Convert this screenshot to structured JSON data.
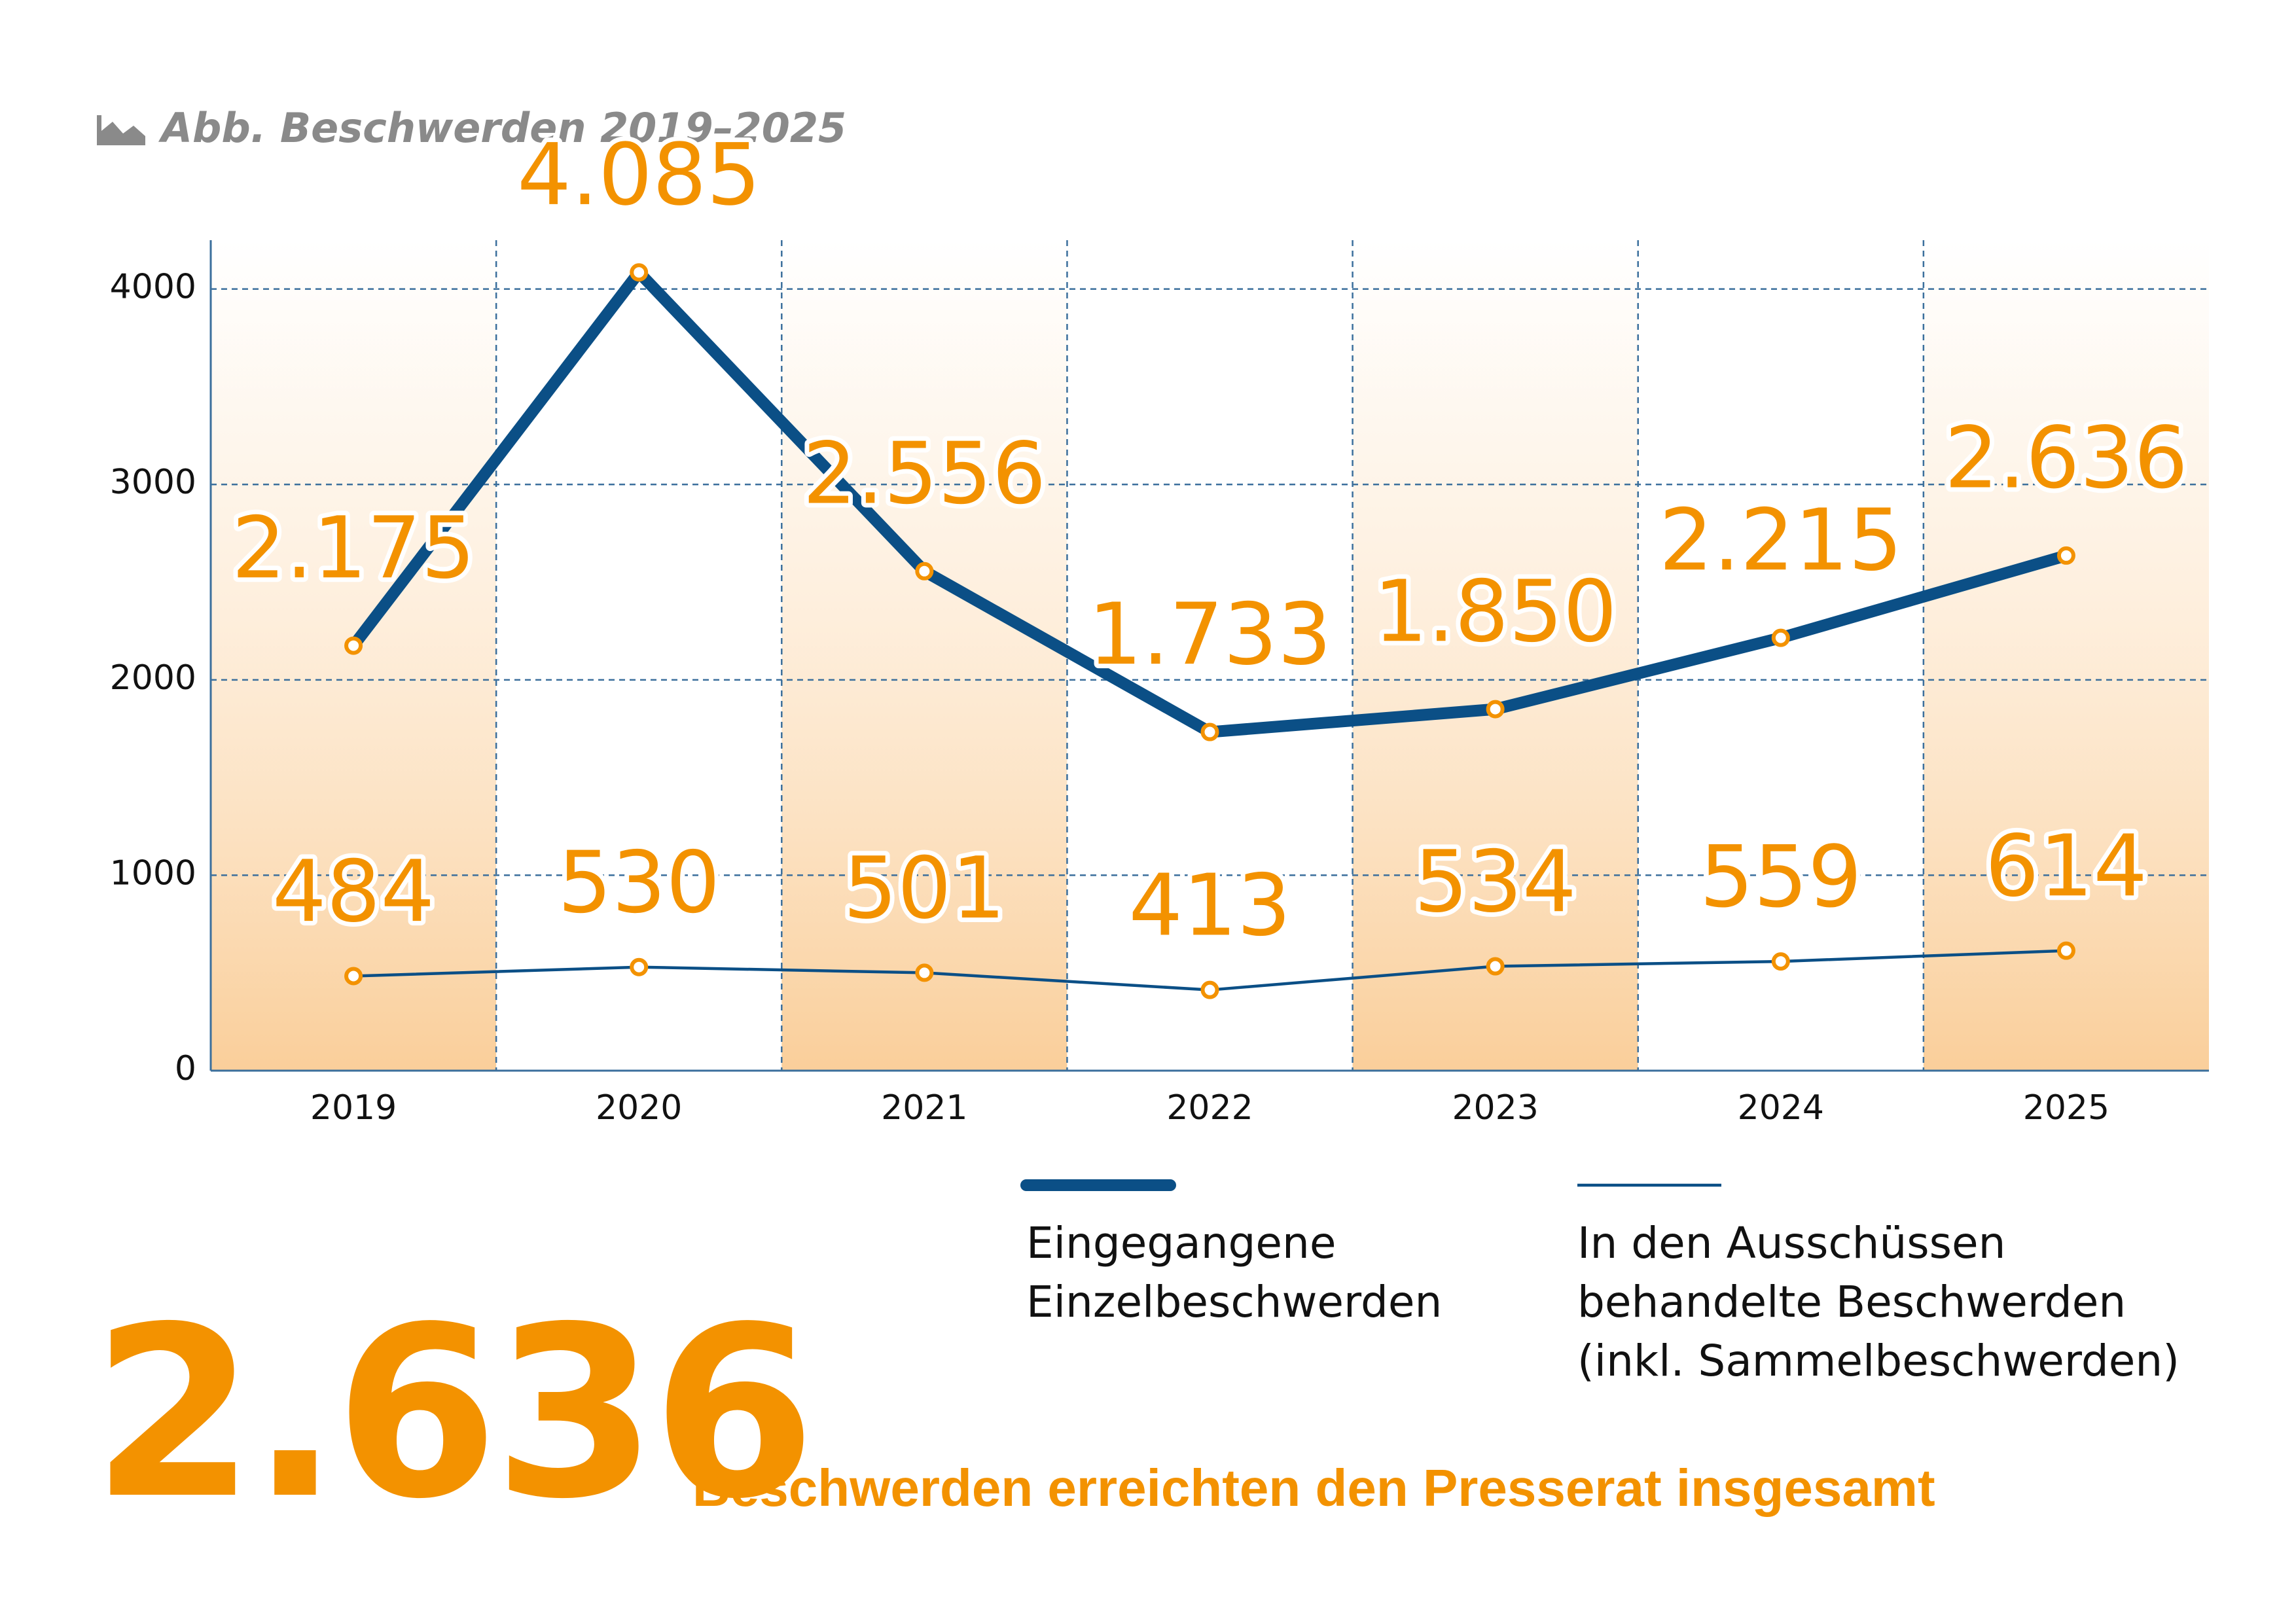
{
  "chart_data": {
    "type": "line",
    "title": "Abb. Beschwerden 2019–2025",
    "categories": [
      "2019",
      "2020",
      "2021",
      "2022",
      "2023",
      "2024",
      "2025"
    ],
    "series": [
      {
        "name": "Eingegangene Einzelbeschwerden",
        "color": "#0b4f86",
        "values": [
          2175,
          4085,
          2556,
          1733,
          1850,
          2215,
          2636
        ],
        "value_labels": [
          "2.175",
          "4.085",
          "2.556",
          "1.733",
          "1.850",
          "2.215",
          "2.636"
        ]
      },
      {
        "name": "In den Ausschüssen behandelte Beschwerden (inkl. Sammelbeschwerden)",
        "color": "#0b4f86",
        "values": [
          484,
          530,
          501,
          413,
          534,
          559,
          614
        ]
      }
    ],
    "label_color": "#f39200",
    "ylim": [
      0,
      4250
    ],
    "yticks": [
      0,
      1000,
      2000,
      3000,
      4000
    ],
    "grid": true,
    "highlight": "2.636",
    "highlight_caption": "Beschwerden erreichten den Presserat insgesamt"
  }
}
